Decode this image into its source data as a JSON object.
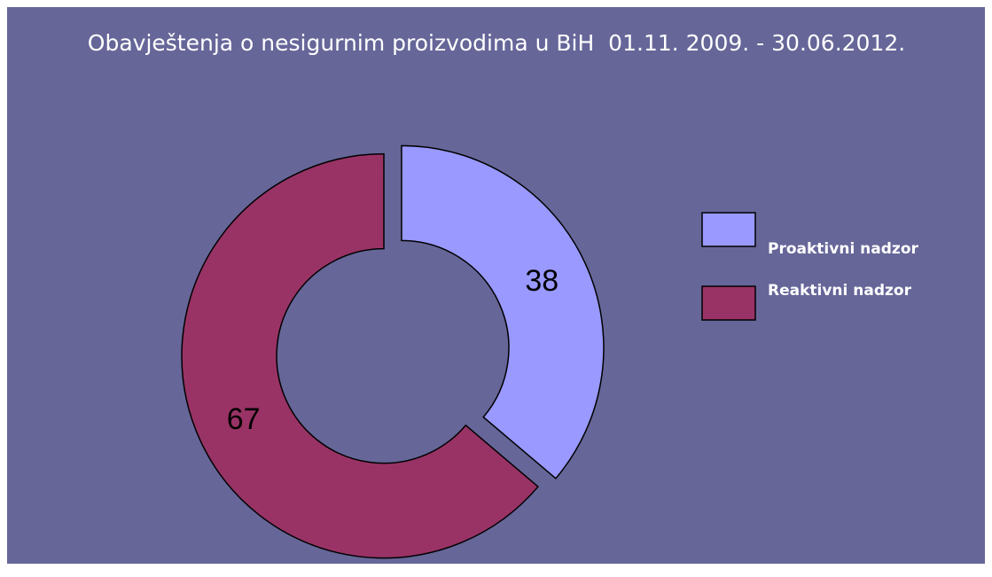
{
  "chart_data": {
    "type": "donut",
    "title": "Obavještenja o nesigurnim proizvodima u BiH  01.11. 2009. - 30.06.2012.",
    "categories": [
      "Proaktivni nadzor",
      "Reaktivni nadzor"
    ],
    "values": [
      38,
      67
    ],
    "colors": [
      "#9999ff",
      "#993366"
    ],
    "legend": "right"
  }
}
